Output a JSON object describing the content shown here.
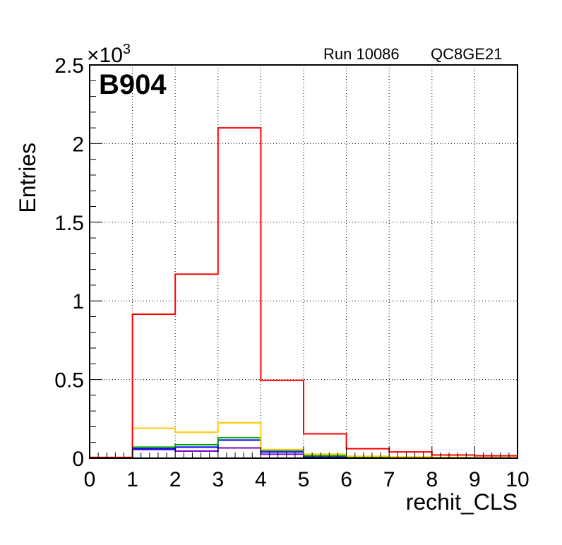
{
  "chart_data": {
    "type": "step-histogram",
    "xlabel": "rechit_CLS",
    "ylabel": "Entries",
    "multiplier_label": "×10",
    "multiplier_exponent": "3",
    "xlim": [
      0,
      10
    ],
    "ylim": [
      0,
      2500
    ],
    "x_ticks": [
      "0",
      "1",
      "2",
      "3",
      "4",
      "5",
      "6",
      "7",
      "8",
      "9",
      "10"
    ],
    "y_ticks": [
      "0",
      "0.5",
      "1",
      "1.5",
      "2",
      "2.5"
    ],
    "grid": true,
    "bin_edges": [
      0,
      1,
      2,
      3,
      4,
      5,
      6,
      7,
      8,
      9,
      10
    ],
    "series": [
      {
        "color": "#ff0000",
        "values": [
          5,
          915,
          1170,
          2100,
          495,
          155,
          60,
          40,
          20,
          15
        ]
      },
      {
        "color": "#ffcc00",
        "values": [
          0,
          190,
          165,
          225,
          55,
          25,
          12,
          8,
          5,
          3
        ]
      },
      {
        "color": "#00aa00",
        "values": [
          0,
          70,
          85,
          130,
          50,
          15,
          8,
          5,
          3,
          2
        ]
      },
      {
        "color": "#0000ff",
        "values": [
          0,
          60,
          70,
          115,
          40,
          12,
          6,
          4,
          2,
          1
        ]
      },
      {
        "color": "#7700cc",
        "values": [
          0,
          55,
          45,
          65,
          25,
          8,
          4,
          2,
          1,
          1
        ]
      }
    ]
  },
  "annotations": {
    "run": "Run 10086",
    "setup": "QC8GE21",
    "tag": "B904"
  }
}
